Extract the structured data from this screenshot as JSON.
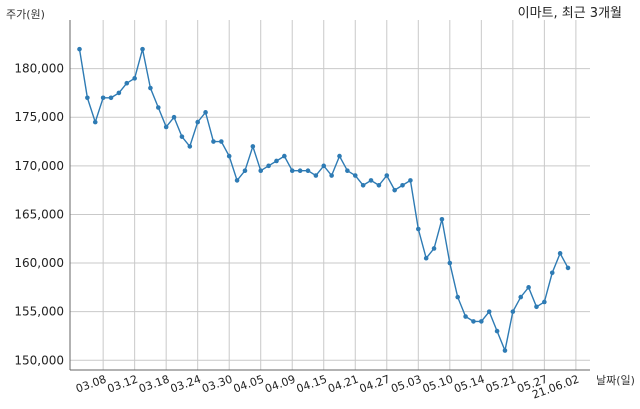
{
  "chart_data": {
    "type": "line",
    "title": "이마트, 최근 3개월",
    "ylabel": "주가(원)",
    "xlabel": "날짜(일)",
    "ylim": [
      149000,
      185000
    ],
    "yticks": [
      150000,
      155000,
      160000,
      165000,
      170000,
      175000,
      180000
    ],
    "ytick_labels": [
      "150,000",
      "155,000",
      "160,000",
      "165,000",
      "170,000",
      "175,000",
      "180,000"
    ],
    "xticks": [
      {
        "label": "03.08",
        "index": 3
      },
      {
        "label": "03.12",
        "index": 7
      },
      {
        "label": "03.18",
        "index": 11
      },
      {
        "label": "03.24",
        "index": 15
      },
      {
        "label": "03.30",
        "index": 19
      },
      {
        "label": "04.05",
        "index": 23
      },
      {
        "label": "04.09",
        "index": 27
      },
      {
        "label": "04.15",
        "index": 31
      },
      {
        "label": "04.21",
        "index": 35
      },
      {
        "label": "04.27",
        "index": 39
      },
      {
        "label": "05.03",
        "index": 43
      },
      {
        "label": "05.10",
        "index": 47
      },
      {
        "label": "05.14",
        "index": 51
      },
      {
        "label": "05.21",
        "index": 55
      },
      {
        "label": "05.27",
        "index": 59
      },
      {
        "label": "21.06.02",
        "index": 63
      }
    ],
    "grid": true,
    "color": "#2e7bb4",
    "series": [
      {
        "values": [
          182000,
          177000,
          174500,
          177000,
          177000,
          177500,
          178500,
          179000,
          182000,
          178000,
          176000,
          174000,
          175000,
          173000,
          172000,
          174500,
          175500,
          172500,
          172500,
          171000,
          168500,
          169500,
          172000,
          169500,
          170000,
          170500,
          171000,
          169500,
          169500,
          169500,
          169000,
          170000,
          169000,
          171000,
          169500,
          169000,
          168000,
          168500,
          168000,
          169000,
          167500,
          168000,
          168500,
          163500,
          160500,
          161500,
          164500,
          160000,
          156500,
          154500,
          154000,
          154000,
          155000,
          153000,
          151000,
          155000,
          156500,
          157500,
          155500,
          156000,
          159000,
          161000,
          159500
        ]
      }
    ]
  }
}
